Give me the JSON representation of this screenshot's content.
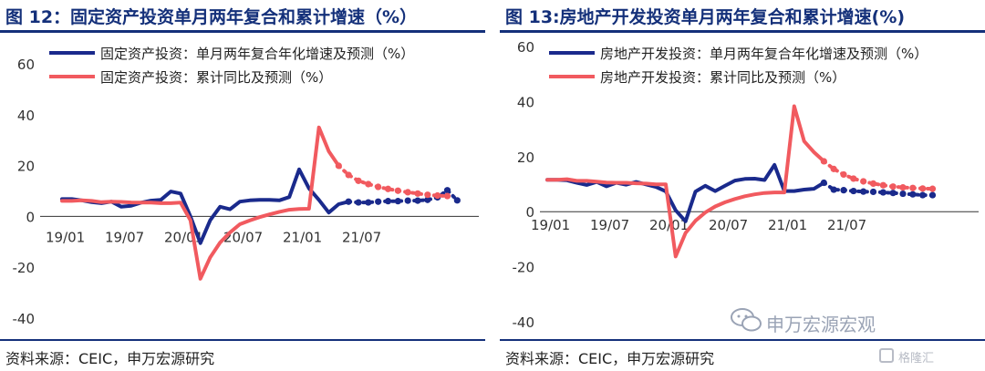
{
  "chart_data": [
    {
      "type": "line",
      "title": "图 12：固定资产投资单月两年复合和累计增速（%）",
      "x_ticks": [
        "19/01",
        "19/07",
        "20/01",
        "20/07",
        "21/01",
        "21/07"
      ],
      "ylim": [
        -40,
        60
      ],
      "y_ticks": [
        -40,
        -20,
        0,
        20,
        40,
        60
      ],
      "legend_position": "top-left",
      "series": [
        {
          "name": "固定资产投资：单月两年复合年化增速及预测（%）",
          "color": "#1a2a8c",
          "actual": [
            [
              1,
              6.8
            ],
            [
              2,
              6.8
            ],
            [
              3,
              6.3
            ],
            [
              4,
              5.6
            ],
            [
              5,
              5.2
            ],
            [
              6,
              5.8
            ],
            [
              7,
              3.8
            ],
            [
              8,
              4.2
            ],
            [
              9,
              5.4
            ],
            [
              10,
              6.2
            ],
            [
              11,
              6.5
            ],
            [
              12,
              9.8
            ],
            [
              13,
              9.0
            ],
            [
              14,
              0.0
            ],
            [
              15,
              -10.5
            ],
            [
              16,
              -1.5
            ],
            [
              17,
              3.8
            ],
            [
              18,
              2.8
            ],
            [
              19,
              5.8
            ],
            [
              20,
              6.3
            ],
            [
              21,
              6.5
            ],
            [
              22,
              6.5
            ],
            [
              23,
              6.3
            ],
            [
              24,
              7.6
            ],
            [
              25,
              18.5
            ],
            [
              26,
              11.0
            ],
            [
              27,
              6.5
            ],
            [
              28,
              1.5
            ],
            [
              29,
              4.8
            ],
            [
              30,
              5.8
            ]
          ],
          "forecast": [
            [
              30,
              5.8
            ],
            [
              31,
              5.5
            ],
            [
              32,
              5.5
            ],
            [
              33,
              5.8
            ],
            [
              34,
              6.0
            ],
            [
              35,
              6.0
            ],
            [
              36,
              6.2
            ],
            [
              37,
              6.2
            ],
            [
              38,
              6.5
            ],
            [
              39,
              7.5
            ],
            [
              40,
              10.3
            ],
            [
              41,
              6.3
            ]
          ]
        },
        {
          "name": "固定资产投资：累计同比及预测（%）",
          "color": "#f15a5f",
          "actual": [
            [
              1,
              6.1
            ],
            [
              2,
              6.1
            ],
            [
              3,
              6.3
            ],
            [
              4,
              6.1
            ],
            [
              5,
              5.6
            ],
            [
              6,
              5.8
            ],
            [
              7,
              5.7
            ],
            [
              8,
              5.5
            ],
            [
              9,
              5.4
            ],
            [
              10,
              5.4
            ],
            [
              11,
              5.2
            ],
            [
              12,
              5.2
            ],
            [
              13,
              5.4
            ],
            [
              14,
              -1.5
            ],
            [
              15,
              -24.5
            ],
            [
              16,
              -16.1
            ],
            [
              17,
              -10.3
            ],
            [
              18,
              -6.3
            ],
            [
              19,
              -3.1
            ],
            [
              20,
              -1.6
            ],
            [
              21,
              -0.3
            ],
            [
              22,
              0.8
            ],
            [
              23,
              1.8
            ],
            [
              24,
              2.6
            ],
            [
              25,
              2.9
            ],
            [
              26,
              3.0
            ],
            [
              27,
              35.0
            ],
            [
              28,
              25.6
            ],
            [
              29,
              19.9
            ]
          ],
          "forecast": [
            [
              29,
              19.9
            ],
            [
              30,
              16.3
            ],
            [
              31,
              14.0
            ],
            [
              32,
              12.7
            ],
            [
              33,
              11.6
            ],
            [
              34,
              10.8
            ],
            [
              35,
              10.1
            ],
            [
              36,
              9.5
            ],
            [
              37,
              9.0
            ],
            [
              38,
              8.5
            ],
            [
              39,
              8.2
            ],
            [
              40,
              8.0
            ]
          ]
        }
      ]
    },
    {
      "type": "line",
      "title": "图 13:房地产开发投资单月两年复合和累计增速(%)",
      "x_ticks": [
        "19/01",
        "19/07",
        "20/01",
        "20/07",
        "21/01",
        "21/07"
      ],
      "ylim": [
        -40,
        60
      ],
      "y_ticks": [
        -40,
        -20,
        0,
        20,
        40,
        60
      ],
      "legend_position": "top-left",
      "series": [
        {
          "name": "房地产开发投资：单月两年复合年化增速及预测（%）",
          "color": "#1a2a8c",
          "actual": [
            [
              1,
              11.6
            ],
            [
              2,
              11.6
            ],
            [
              3,
              11.4
            ],
            [
              4,
              10.5
            ],
            [
              5,
              9.7
            ],
            [
              6,
              10.8
            ],
            [
              7,
              9.2
            ],
            [
              8,
              10.5
            ],
            [
              9,
              9.8
            ],
            [
              10,
              10.8
            ],
            [
              11,
              9.9
            ],
            [
              12,
              9.0
            ],
            [
              13,
              7.4
            ],
            [
              14,
              0.5
            ],
            [
              15,
              -3.5
            ],
            [
              16,
              7.3
            ],
            [
              17,
              9.4
            ],
            [
              18,
              7.5
            ],
            [
              19,
              9.4
            ],
            [
              20,
              11.3
            ],
            [
              21,
              11.9
            ],
            [
              22,
              12.0
            ],
            [
              23,
              11.5
            ],
            [
              24,
              17.0
            ],
            [
              25,
              7.5
            ],
            [
              26,
              7.5
            ],
            [
              27,
              8.0
            ],
            [
              28,
              8.3
            ],
            [
              29,
              10.5
            ]
          ],
          "forecast": [
            [
              29,
              10.5
            ],
            [
              30,
              8.0
            ],
            [
              31,
              7.8
            ],
            [
              32,
              7.5
            ],
            [
              33,
              7.3
            ],
            [
              34,
              7.2
            ],
            [
              35,
              7.0
            ],
            [
              36,
              6.8
            ],
            [
              37,
              6.5
            ],
            [
              38,
              6.3
            ],
            [
              39,
              6.0
            ],
            [
              40,
              6.0
            ]
          ]
        },
        {
          "name": "房地产开发投资：累计同比及预测（%）",
          "color": "#f15a5f",
          "actual": [
            [
              1,
              11.6
            ],
            [
              2,
              11.6
            ],
            [
              3,
              11.8
            ],
            [
              4,
              11.2
            ],
            [
              5,
              11.2
            ],
            [
              6,
              10.9
            ],
            [
              7,
              10.6
            ],
            [
              8,
              10.5
            ],
            [
              9,
              10.5
            ],
            [
              10,
              10.3
            ],
            [
              11,
              10.2
            ],
            [
              12,
              9.9
            ],
            [
              13,
              9.9
            ],
            [
              14,
              -16.3
            ],
            [
              15,
              -7.7
            ],
            [
              16,
              -3.3
            ],
            [
              17,
              -0.3
            ],
            [
              18,
              1.9
            ],
            [
              19,
              3.4
            ],
            [
              20,
              4.6
            ],
            [
              21,
              5.6
            ],
            [
              22,
              6.3
            ],
            [
              23,
              6.8
            ],
            [
              24,
              7.0
            ],
            [
              25,
              7.0
            ],
            [
              26,
              38.3
            ],
            [
              27,
              25.6
            ],
            [
              28,
              21.6
            ],
            [
              29,
              18.3
            ]
          ],
          "forecast": [
            [
              29,
              18.3
            ],
            [
              30,
              15.5
            ],
            [
              31,
              13.5
            ],
            [
              32,
              12.0
            ],
            [
              33,
              11.0
            ],
            [
              34,
              10.2
            ],
            [
              35,
              9.6
            ],
            [
              36,
              9.1
            ],
            [
              37,
              8.8
            ],
            [
              38,
              8.6
            ],
            [
              39,
              8.4
            ],
            [
              40,
              8.3
            ]
          ]
        }
      ]
    }
  ],
  "source": "资料来源：CEIC，申万宏源研究",
  "watermark": "申万宏源宏观",
  "corner_logo": "格隆汇"
}
